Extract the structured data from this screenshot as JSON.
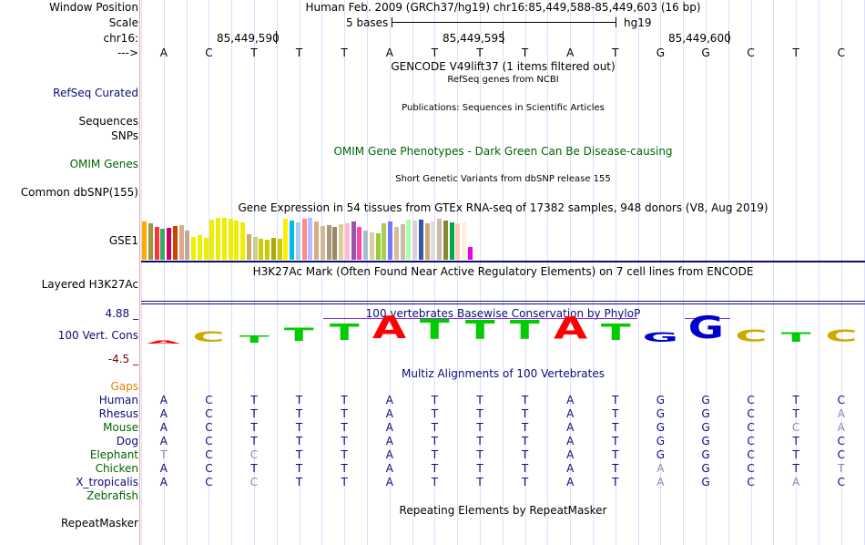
{
  "labels": {
    "window_position": "Window Position",
    "scale": "Scale",
    "chrom": "chr16:",
    "strand_arrow": "--->",
    "refseq": "RefSeq Curated",
    "sequences": "Sequences",
    "snps": "SNPs",
    "omim": "OMIM Genes",
    "dbsnp": "Common dbSNP(155)",
    "gse1": "GSE1",
    "layered": "Layered H3K27Ac",
    "cons": "100 Vert. Cons",
    "cons_max": "4.88 _",
    "cons_min": "-4.5 _",
    "gaps": "Gaps",
    "repeatmasker": "RepeatMasker"
  },
  "header": {
    "position": "Human Feb. 2009 (GRCh37/hg19)   chr16:85,449,588-85,449,603 (16 bp)",
    "scale_text": "5 bases",
    "assembly": "hg19",
    "ruler": [
      "85,449,590",
      "85,449,595",
      "85,449,600"
    ]
  },
  "bases": [
    "A",
    "C",
    "T",
    "T",
    "T",
    "A",
    "T",
    "T",
    "T",
    "A",
    "T",
    "G",
    "G",
    "C",
    "T",
    "C"
  ],
  "tracks": {
    "gencode": "GENCODE V49lift37 (1 items filtered out)",
    "refseq_desc": "RefSeq genes from NCBI",
    "publications": "Publications: Sequences in Scientific Articles",
    "omim_desc": "OMIM Gene Phenotypes - Dark Green Can Be Disease-causing",
    "dbsnp_desc": "Short Genetic Variants from dbSNP release 155",
    "gtex_desc": "Gene Expression in 54 tissues from GTEx RNA-seq of 17382 samples, 948 donors (V8, Aug 2019)",
    "h3k27ac_desc": "H3K27Ac Mark (Often Found Near Active Regulatory Elements) on 7 cell lines from ENCODE",
    "cons_desc": "100 vertebrates Basewise Conservation by PhyloP",
    "multiz_desc": "Multiz Alignments of 100 Vertebrates",
    "rmsk_desc": "Repeating Elements by RepeatMasker"
  },
  "gtex_levels": [
    0.92,
    0.88,
    0.78,
    0.75,
    0.76,
    0.8,
    0.82,
    0.7,
    0.55,
    0.58,
    0.52,
    0.95,
    0.99,
    1.0,
    0.97,
    0.93,
    0.9,
    0.6,
    0.55,
    0.5,
    0.48,
    0.52,
    0.5,
    0.97,
    0.93,
    0.9,
    0.97,
    0.99,
    0.92,
    0.8,
    0.82,
    0.78,
    0.85,
    0.88,
    0.92,
    0.78,
    0.7,
    0.66,
    0.64,
    0.86,
    0.91,
    0.78,
    0.85,
    0.95,
    0.93,
    0.96,
    0.86,
    0.92,
    0.97,
    0.94,
    0.9,
    0.88,
    0.9,
    0.3
  ],
  "gtex_colors": [
    "#ffaa00",
    "#999944",
    "#ff3333",
    "#33aa66",
    "#cc0066",
    "#cc4400",
    "#ddaa88",
    "#bbaa99",
    "#eeee00",
    "#eeee00",
    "#eeee00",
    "#eeee00",
    "#eeee00",
    "#eeee00",
    "#eeee00",
    "#eeee00",
    "#eeee00",
    "#ccaa66",
    "#cccc99",
    "#cccc00",
    "#cccc00",
    "#aaaa00",
    "#cccc00",
    "#ffee00",
    "#00bbee",
    "#aaccee",
    "#ff8888",
    "#bbbbff",
    "#ddaa88",
    "#ccbb99",
    "#aa9977",
    "#998866",
    "#ddcc99",
    "#ffbbcc",
    "#9955aa",
    "#ff44aa",
    "#aabbcc",
    "#ddccaa",
    "#99cc33",
    "#aacc55",
    "#7777ff",
    "#ddbb99",
    "#ccbbaa",
    "#aaffaa",
    "#ddccdd",
    "#3355aa",
    "#ccaa77",
    "#dddddd",
    "#ccbbaa",
    "#888833",
    "#00aa44",
    "#ffccbb",
    "#ffeedd",
    "#ee00ee"
  ],
  "cons_letters": [
    "A",
    "C",
    "T",
    "T",
    "T",
    "A",
    "T",
    "T",
    "T",
    "A",
    "T",
    "G",
    "G",
    "C",
    "T",
    "C"
  ],
  "cons_scale": [
    0.12,
    0.45,
    0.3,
    0.55,
    0.7,
    0.95,
    0.85,
    0.8,
    0.8,
    0.92,
    0.7,
    0.4,
    0.95,
    0.5,
    0.4,
    0.5
  ],
  "multiz": [
    {
      "species": "Human",
      "bases": "ACTTTATTTATGGCTC",
      "faint": []
    },
    {
      "species": "Rhesus",
      "bases": "ACTTTATTTATGGCTA",
      "faint": [
        15
      ]
    },
    {
      "species": "Mouse",
      "bases": "ACTTTATTTATGGCCA",
      "faint": [
        14,
        15
      ]
    },
    {
      "species": "Dog",
      "bases": "ACTTTATTTATGGCTC",
      "faint": []
    },
    {
      "species": "Elephant",
      "bases": "TCCTTATTTATGGCTC",
      "faint": [
        0,
        2
      ]
    },
    {
      "species": "Chicken",
      "bases": "ACTTTATTTATAGCTT",
      "faint": [
        11,
        15
      ]
    },
    {
      "species": "X_tropicalis",
      "bases": "ACCTTATTTATAGCAC",
      "faint": [
        2,
        11,
        14
      ]
    },
    {
      "species": "Zebrafish",
      "bases": "",
      "faint": []
    }
  ],
  "colors": {
    "A": "#ff0000",
    "C": "#ccaa00",
    "G": "#0000cc",
    "T": "#00cc00",
    "navy": "#0c0c78",
    "omim": "#006400",
    "gaps": "#e08000",
    "purple": "#8a2be2"
  }
}
